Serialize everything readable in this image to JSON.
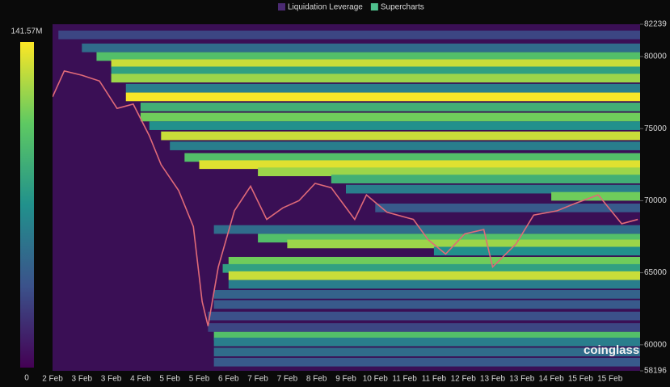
{
  "chart_data": {
    "type": "heatmap",
    "series": [
      {
        "name": "Liquidation Leverage",
        "color": "#4b2a72"
      },
      {
        "name": "Supercharts",
        "color": "#4fc08d"
      }
    ],
    "categories": [
      "2 Feb",
      "3 Feb",
      "3 Feb",
      "4 Feb",
      "5 Feb",
      "5 Feb",
      "6 Feb",
      "7 Feb",
      "7 Feb",
      "8 Feb",
      "9 Feb",
      "10 Feb",
      "11 Feb",
      "11 Feb",
      "12 Feb",
      "13 Feb",
      "13 Feb",
      "14 Feb",
      "15 Feb",
      "15 Feb"
    ],
    "ylim": [
      58196,
      82239
    ],
    "yticks": [
      58196,
      60000,
      65000,
      70000,
      75000,
      80000,
      82239
    ],
    "colorbar": {
      "ticks": [
        0,
        {
          "value": 141570000,
          "label": "141.57M"
        }
      ]
    },
    "price": {
      "color": "#e06a78",
      "x": [
        0,
        0.4,
        1,
        1.6,
        2.2,
        2.75,
        3.3,
        3.7,
        4.3,
        4.8,
        5.1,
        5.3,
        5.65,
        6.2,
        6.75,
        7.3,
        7.85,
        8.4,
        8.95,
        9.5,
        10.3,
        10.7,
        11.4,
        12.3,
        12.8,
        13.4,
        14.05,
        14.7,
        15.0,
        15.8,
        16.4,
        17.2,
        17.8,
        18.6,
        19.4,
        19.95
      ],
      "values": [
        77200,
        79000,
        78700,
        78300,
        76400,
        76700,
        74500,
        72500,
        70700,
        68200,
        63000,
        61300,
        65400,
        69300,
        71000,
        68700,
        69500,
        70000,
        71200,
        70900,
        68700,
        70400,
        69200,
        68700,
        67300,
        66300,
        67700,
        68000,
        65400,
        67000,
        69000,
        69300,
        69800,
        70400,
        68400,
        68700
      ]
    },
    "levels": {
      "price": [
        81500,
        80600,
        80000,
        79500,
        79000,
        78500,
        77800,
        77200,
        76500,
        75800,
        75200,
        74500,
        73800,
        73000,
        72500,
        72000,
        71500,
        70800,
        70300,
        69500,
        68000,
        67400,
        67000,
        66500,
        65800,
        65300,
        64800,
        64200,
        63500,
        62800,
        62000,
        61200,
        60600,
        60200,
        59500,
        58800
      ],
      "start": [
        0.2,
        1,
        1.5,
        2,
        2,
        2,
        2.5,
        2.5,
        3,
        3,
        3.3,
        3.7,
        4,
        4.5,
        5,
        7,
        9.5,
        10,
        17,
        11,
        5.5,
        7,
        8,
        13,
        6,
        5.8,
        6,
        6,
        5.5,
        5.5,
        5.3,
        5.3,
        5.5,
        5.5,
        5.5,
        5.5
      ],
      "values": [
        30000000,
        50000000,
        100000000,
        130000000,
        80000000,
        120000000,
        60000000,
        140000000,
        90000000,
        110000000,
        70000000,
        130000000,
        60000000,
        100000000,
        135000000,
        120000000,
        90000000,
        60000000,
        110000000,
        40000000,
        50000000,
        100000000,
        120000000,
        70000000,
        110000000,
        80000000,
        130000000,
        60000000,
        45000000,
        40000000,
        35000000,
        30000000,
        100000000,
        60000000,
        50000000,
        40000000
      ]
    },
    "watermark": "coinglass"
  }
}
